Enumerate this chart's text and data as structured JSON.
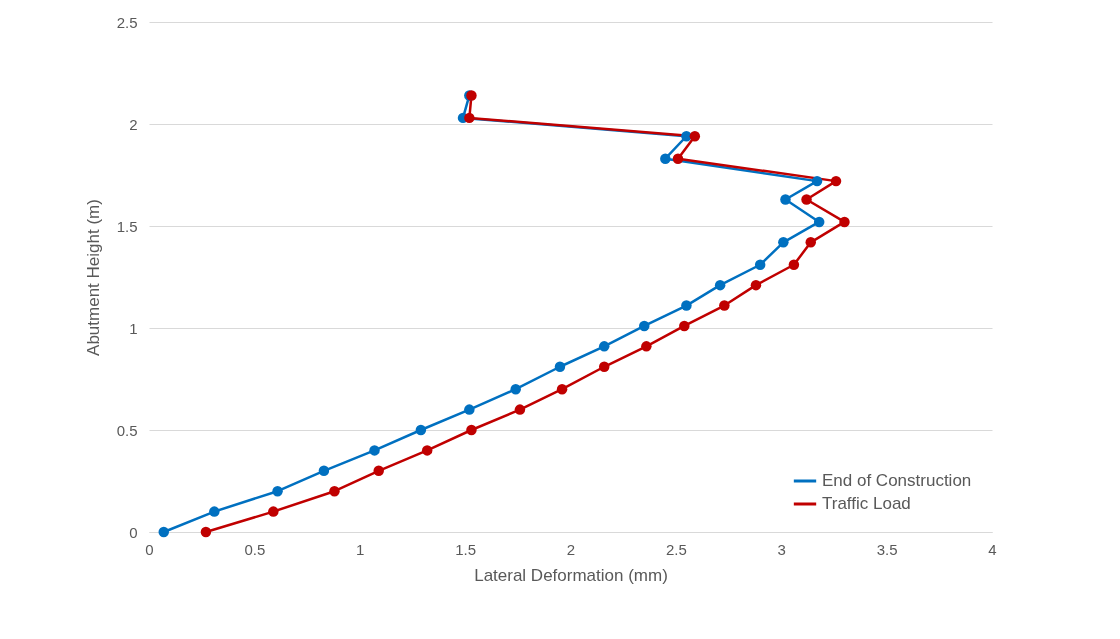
{
  "chart_data": {
    "type": "line",
    "xlabel": "Lateral Deformation (mm)",
    "ylabel": "Abutment Height (m)",
    "xlim": [
      0,
      4
    ],
    "xticks": [
      0,
      0.5,
      1,
      1.5,
      2,
      2.5,
      3,
      3.5,
      4
    ],
    "ylim": [
      0,
      2.5
    ],
    "yticks": [
      0,
      0.5,
      1,
      1.5,
      2,
      2.5
    ],
    "grid": "y",
    "legend": "bottom right",
    "marker": "circle",
    "line_style": "solid",
    "series": [
      {
        "name": "End of Construction",
        "color": "#0070c0",
        "x": [
          0.07,
          0.31,
          0.61,
          0.83,
          1.07,
          1.29,
          1.52,
          1.74,
          1.95,
          2.16,
          2.35,
          2.55,
          2.71,
          2.9,
          3.01,
          3.18,
          3.02,
          3.17,
          2.45,
          2.55,
          1.49,
          1.52
        ],
        "values": [
          0,
          0.1,
          0.2,
          0.3,
          0.4,
          0.5,
          0.6,
          0.7,
          0.81,
          0.91,
          1.01,
          1.11,
          1.21,
          1.31,
          1.42,
          1.52,
          1.63,
          1.72,
          1.83,
          1.94,
          2.03,
          2.14
        ]
      },
      {
        "name": "Traffic Load",
        "color": "#c00000",
        "x": [
          0.27,
          0.59,
          0.88,
          1.09,
          1.32,
          1.53,
          1.76,
          1.96,
          2.16,
          2.36,
          2.54,
          2.73,
          2.88,
          3.06,
          3.14,
          3.3,
          3.12,
          3.26,
          2.51,
          2.59,
          1.52,
          1.53
        ],
        "values": [
          0,
          0.1,
          0.2,
          0.3,
          0.4,
          0.5,
          0.6,
          0.7,
          0.81,
          0.91,
          1.01,
          1.11,
          1.21,
          1.31,
          1.42,
          1.52,
          1.63,
          1.72,
          1.83,
          1.94,
          2.03,
          2.14
        ]
      }
    ]
  }
}
